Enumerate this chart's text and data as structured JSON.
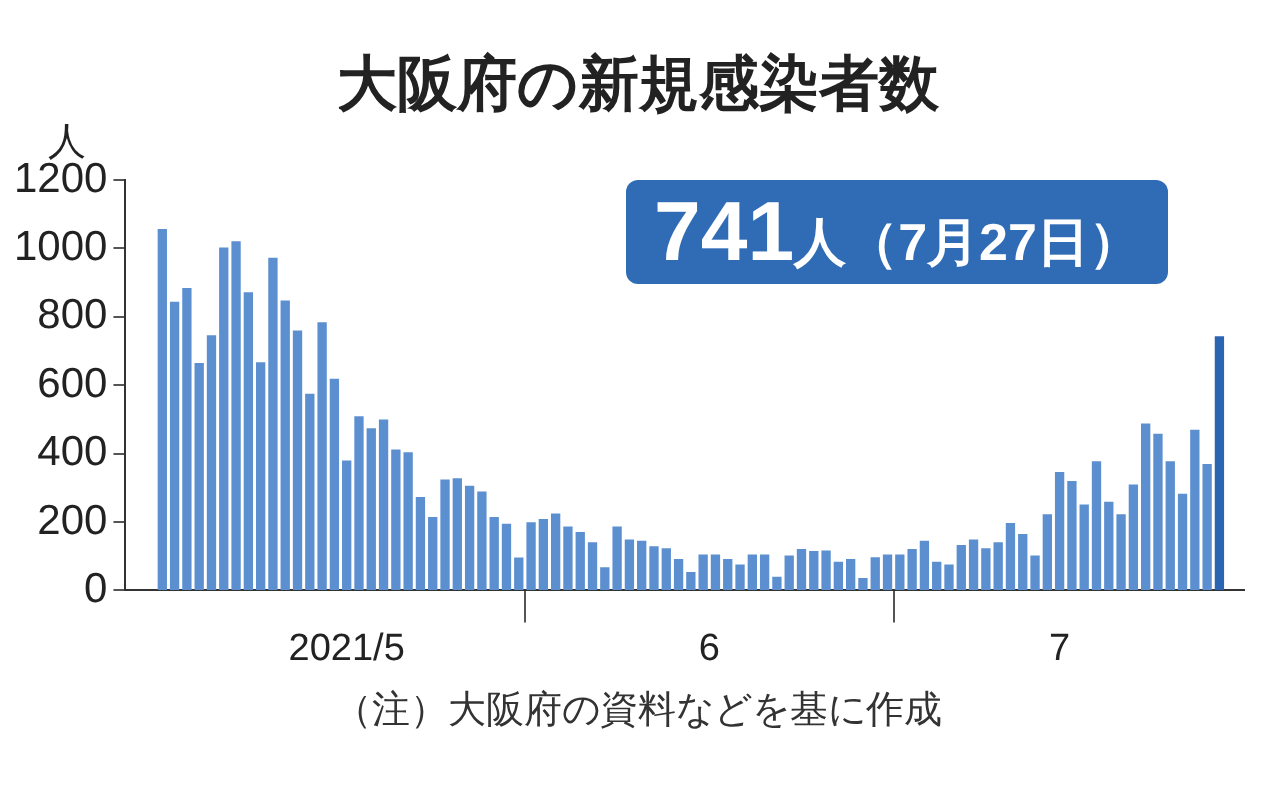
{
  "chart_data": {
    "type": "bar",
    "title": "大阪府の新規感染者数",
    "ylabel": "人",
    "annotations": [
      "741人（7月27日）",
      "（注）大阪府の資料などを基に作成"
    ],
    "x": [
      "2021-05-02",
      "2021-05-03",
      "2021-05-04",
      "2021-05-05",
      "2021-05-06",
      "2021-05-07",
      "2021-05-08",
      "2021-05-09",
      "2021-05-10",
      "2021-05-11",
      "2021-05-12",
      "2021-05-13",
      "2021-05-14",
      "2021-05-15",
      "2021-05-16",
      "2021-05-17",
      "2021-05-18",
      "2021-05-19",
      "2021-05-20",
      "2021-05-21",
      "2021-05-22",
      "2021-05-23",
      "2021-05-24",
      "2021-05-25",
      "2021-05-26",
      "2021-05-27",
      "2021-05-28",
      "2021-05-29",
      "2021-05-30",
      "2021-05-31",
      "2021-06-01",
      "2021-06-02",
      "2021-06-03",
      "2021-06-04",
      "2021-06-05",
      "2021-06-06",
      "2021-06-07",
      "2021-06-08",
      "2021-06-09",
      "2021-06-10",
      "2021-06-11",
      "2021-06-12",
      "2021-06-13",
      "2021-06-14",
      "2021-06-15",
      "2021-06-16",
      "2021-06-17",
      "2021-06-18",
      "2021-06-19",
      "2021-06-20",
      "2021-06-21",
      "2021-06-22",
      "2021-06-23",
      "2021-06-24",
      "2021-06-25",
      "2021-06-26",
      "2021-06-27",
      "2021-06-28",
      "2021-06-29",
      "2021-06-30",
      "2021-07-01",
      "2021-07-02",
      "2021-07-03",
      "2021-07-04",
      "2021-07-05",
      "2021-07-06",
      "2021-07-07",
      "2021-07-08",
      "2021-07-09",
      "2021-07-10",
      "2021-07-11",
      "2021-07-12",
      "2021-07-13",
      "2021-07-14",
      "2021-07-15",
      "2021-07-16",
      "2021-07-17",
      "2021-07-18",
      "2021-07-19",
      "2021-07-20",
      "2021-07-21",
      "2021-07-22",
      "2021-07-23",
      "2021-07-24",
      "2021-07-25",
      "2021-07-26",
      "2021-07-27"
    ],
    "values": [
      1055,
      842,
      882,
      663,
      744,
      1001,
      1019,
      870,
      665,
      971,
      846,
      758,
      573,
      782,
      617,
      378,
      507,
      472,
      498,
      410,
      402,
      271,
      213,
      322,
      326,
      304,
      287,
      213,
      193,
      94,
      197,
      207,
      223,
      185,
      169,
      139,
      66,
      185,
      147,
      143,
      127,
      121,
      90,
      52,
      103,
      103,
      90,
      74,
      103,
      103,
      38,
      100,
      119,
      113,
      115,
      82,
      90,
      34,
      95,
      103,
      103,
      119,
      143,
      82,
      74,
      131,
      147,
      121,
      139,
      195,
      163,
      100,
      221,
      344,
      318,
      249,
      376,
      257,
      221,
      308,
      486,
      456,
      376,
      281,
      468,
      368,
      741
    ],
    "colors": [
      "#5b8fd0",
      "#5b8fd0",
      "#5b8fd0",
      "#5b8fd0",
      "#5b8fd0",
      "#5b8fd0",
      "#5b8fd0",
      "#5b8fd0",
      "#5b8fd0",
      "#5b8fd0",
      "#5b8fd0",
      "#5b8fd0",
      "#5b8fd0",
      "#5b8fd0",
      "#5b8fd0",
      "#5b8fd0",
      "#5b8fd0",
      "#5b8fd0",
      "#5b8fd0",
      "#5b8fd0",
      "#5b8fd0",
      "#5b8fd0",
      "#5b8fd0",
      "#5b8fd0",
      "#5b8fd0",
      "#5b8fd0",
      "#5b8fd0",
      "#5b8fd0",
      "#5b8fd0",
      "#5b8fd0",
      "#5b8fd0",
      "#5b8fd0",
      "#5b8fd0",
      "#5b8fd0",
      "#5b8fd0",
      "#5b8fd0",
      "#5b8fd0",
      "#5b8fd0",
      "#5b8fd0",
      "#5b8fd0",
      "#5b8fd0",
      "#5b8fd0",
      "#5b8fd0",
      "#5b8fd0",
      "#5b8fd0",
      "#5b8fd0",
      "#5b8fd0",
      "#5b8fd0",
      "#5b8fd0",
      "#5b8fd0",
      "#5b8fd0",
      "#5b8fd0",
      "#5b8fd0",
      "#5b8fd0",
      "#5b8fd0",
      "#5b8fd0",
      "#5b8fd0",
      "#5b8fd0",
      "#5b8fd0",
      "#5b8fd0",
      "#5b8fd0",
      "#5b8fd0",
      "#5b8fd0",
      "#5b8fd0",
      "#5b8fd0",
      "#5b8fd0",
      "#5b8fd0",
      "#5b8fd0",
      "#5b8fd0",
      "#5b8fd0",
      "#5b8fd0",
      "#5b8fd0",
      "#5b8fd0",
      "#5b8fd0",
      "#5b8fd0",
      "#5b8fd0",
      "#5b8fd0",
      "#5b8fd0",
      "#5b8fd0",
      "#5b8fd0",
      "#5b8fd0",
      "#5b8fd0",
      "#5b8fd0",
      "#5b8fd0",
      "#5b8fd0",
      "#5b8fd0",
      "#2b64b0"
    ],
    "xlim": [
      "2021-04-29",
      "2021-07-29"
    ],
    "xticks": [
      {
        "value": "2021-05-17",
        "label": "2021/5"
      },
      {
        "value": "2021-05-31T12:00",
        "label": null
      },
      {
        "value": "2021-06-15T12:00",
        "label": "6"
      },
      {
        "value": "2021-06-30T12:00",
        "label": null
      },
      {
        "value": "2021-07-14",
        "label": "7"
      }
    ],
    "ylim": [
      0,
      1200
    ],
    "yticks": [
      0,
      200,
      400,
      600,
      800,
      1000,
      1200
    ],
    "grid": false,
    "legend": false
  }
}
